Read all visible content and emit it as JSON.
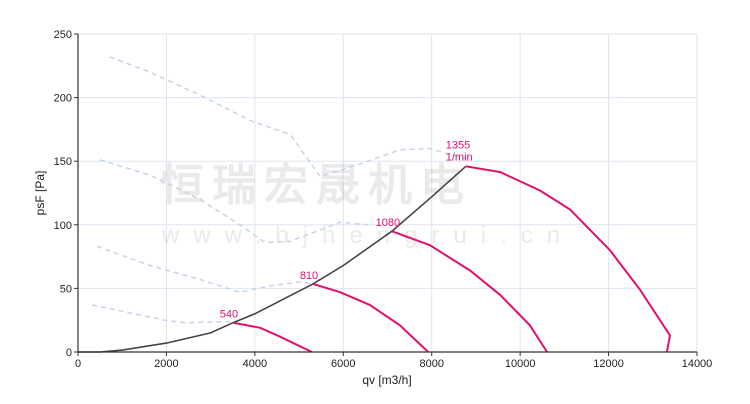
{
  "chart_data": {
    "type": "line",
    "xlabel": "qv [m3/h]",
    "ylabel": "psF [Pa]",
    "xlim": [
      0,
      14000
    ],
    "ylim": [
      0,
      250
    ],
    "xticks": [
      0,
      2000,
      4000,
      6000,
      8000,
      10000,
      12000,
      14000
    ],
    "yticks": [
      0,
      50,
      100,
      150,
      200,
      250
    ],
    "grid": true,
    "colors": {
      "speed_curve": "#e0106e",
      "system_curve": "#444444",
      "dashed_curve": "#c8d4e6",
      "grid": "#dde5ef"
    },
    "system_curve": [
      [
        0,
        0
      ],
      [
        500,
        0
      ],
      [
        1000,
        1.5
      ],
      [
        2000,
        7
      ],
      [
        3000,
        15
      ],
      [
        3505,
        23
      ],
      [
        4000,
        30
      ],
      [
        5315,
        53.5
      ],
      [
        6000,
        68
      ],
      [
        7100,
        95
      ],
      [
        8000,
        122
      ],
      [
        8770,
        146
      ]
    ],
    "speed_curves": [
      {
        "label": "540",
        "points": [
          [
            3505,
            23
          ],
          [
            4120,
            19
          ],
          [
            4570,
            12
          ],
          [
            5290,
            0
          ]
        ]
      },
      {
        "label": "810",
        "points": [
          [
            5315,
            53.5
          ],
          [
            5930,
            47
          ],
          [
            6600,
            37
          ],
          [
            7280,
            21
          ],
          [
            7920,
            0
          ]
        ]
      },
      {
        "label": "1080",
        "points": [
          [
            7100,
            95
          ],
          [
            7960,
            84
          ],
          [
            8870,
            64
          ],
          [
            9545,
            45
          ],
          [
            10220,
            21
          ],
          [
            10610,
            0
          ]
        ]
      },
      {
        "label": "1355",
        "label2": "1/min",
        "points": [
          [
            8770,
            146
          ],
          [
            9545,
            141.5
          ],
          [
            10450,
            127
          ],
          [
            11130,
            112
          ],
          [
            12030,
            80
          ],
          [
            12710,
            49
          ],
          [
            13390,
            13
          ],
          [
            13320,
            0
          ]
        ]
      }
    ],
    "dashed_curves": [
      [
        [
          720,
          232
        ],
        [
          1630,
          220
        ],
        [
          2760,
          202
        ],
        [
          3890,
          182
        ],
        [
          4800,
          171
        ],
        [
          5475,
          138
        ],
        [
          6400,
          148
        ],
        [
          7280,
          159
        ],
        [
          7960,
          160
        ],
        [
          8770,
          152
        ]
      ],
      [
        [
          500,
          151
        ],
        [
          1630,
          139
        ],
        [
          2760,
          120
        ],
        [
          3660,
          100
        ],
        [
          4230,
          86
        ],
        [
          4800,
          87
        ],
        [
          5930,
          102
        ],
        [
          6600,
          100
        ]
      ],
      [
        [
          430,
          83
        ],
        [
          1630,
          68
        ],
        [
          2760,
          57
        ],
        [
          3660,
          47
        ],
        [
          4340,
          52
        ],
        [
          5020,
          55
        ],
        [
          5315,
          53.5
        ]
      ],
      [
        [
          320,
          37
        ],
        [
          1970,
          25
        ],
        [
          2420,
          23
        ],
        [
          3440,
          24
        ]
      ]
    ]
  },
  "watermark": {
    "line1": "恒瑞宏晟机电",
    "line2": "www.bjhengrui.cn"
  }
}
